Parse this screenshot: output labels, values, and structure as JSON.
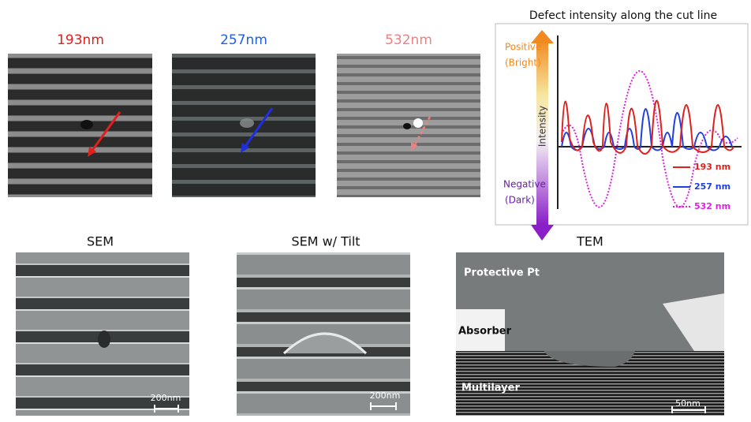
{
  "top_panels": [
    {
      "label": "193nm"
    },
    {
      "label": "257nm"
    },
    {
      "label": "532nm"
    }
  ],
  "plot": {
    "title": "Defect intensity along the cut line",
    "positive": "Positive",
    "bright": "(Bright)",
    "axis_label": "Intensity",
    "negative": "Negative",
    "dark": "(Dark)",
    "legend": [
      "193 nm",
      "257 nm",
      "532 nm"
    ]
  },
  "bottom_panels": [
    {
      "label": "SEM",
      "scale": "200nm"
    },
    {
      "label": "SEM w/ Tilt",
      "scale": "200nm"
    },
    {
      "label": "TEM",
      "scale": "50nm",
      "annotations": [
        "Protective Pt",
        "Absorber",
        "Multilayer"
      ]
    }
  ]
}
